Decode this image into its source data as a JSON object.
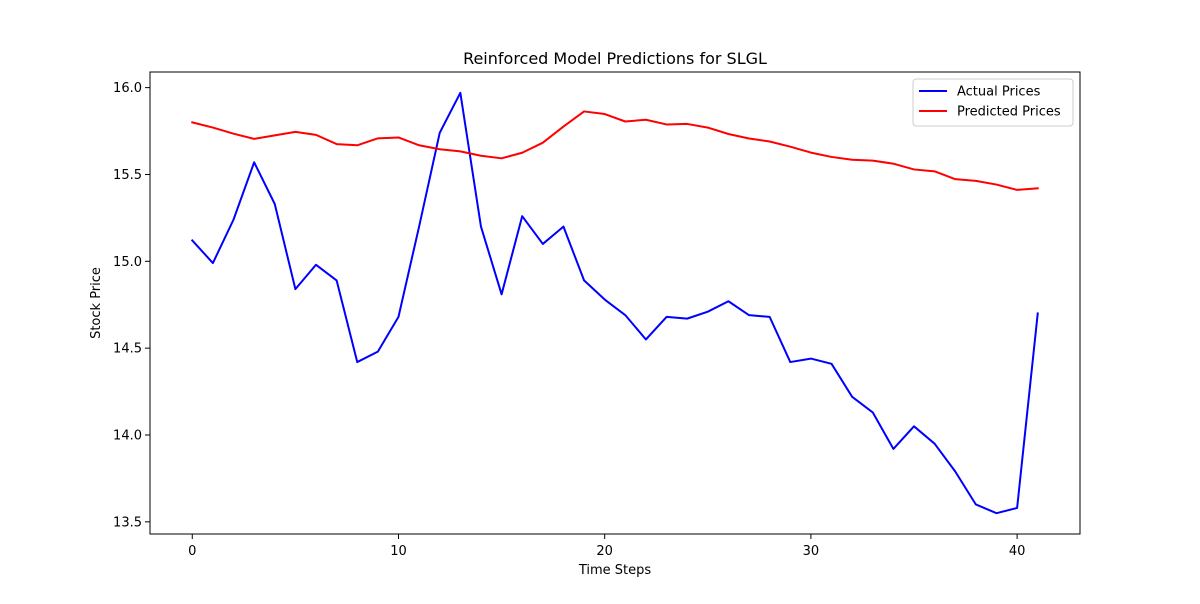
{
  "chart_data": {
    "type": "line",
    "title": "Reinforced Model Predictions for SLGL",
    "xlabel": "Time Steps",
    "ylabel": "Stock Price",
    "xlim": [
      -2.05,
      43.05
    ],
    "ylim": [
      13.43,
      16.09
    ],
    "xticks": [
      0,
      10,
      20,
      30,
      40
    ],
    "yticks": [
      13.5,
      14.0,
      14.5,
      15.0,
      15.5,
      16.0
    ],
    "ytick_labels": [
      "13.5",
      "14.0",
      "14.5",
      "15.0",
      "15.5",
      "16.0"
    ],
    "grid": false,
    "legend_position": "top-right",
    "x": [
      0,
      1,
      2,
      3,
      4,
      5,
      6,
      7,
      8,
      9,
      10,
      11,
      12,
      13,
      14,
      15,
      16,
      17,
      18,
      19,
      20,
      21,
      22,
      23,
      24,
      25,
      26,
      27,
      28,
      29,
      30,
      31,
      32,
      33,
      34,
      35,
      36,
      37,
      38,
      39,
      40,
      41
    ],
    "series": [
      {
        "name": "Actual Prices",
        "color": "#0000ff",
        "values": [
          15.12,
          14.99,
          15.24,
          15.57,
          15.33,
          14.84,
          14.98,
          14.89,
          14.42,
          14.48,
          14.68,
          15.2,
          15.74,
          15.97,
          15.2,
          14.81,
          15.26,
          15.1,
          15.2,
          14.89,
          14.78,
          14.69,
          14.55,
          14.68,
          14.67,
          14.71,
          14.77,
          14.69,
          14.68,
          14.42,
          14.44,
          14.41,
          14.22,
          14.13,
          13.92,
          14.05,
          13.95,
          13.79,
          13.6,
          13.55,
          13.58,
          14.7
        ]
      },
      {
        "name": "Predicted Prices",
        "color": "#ff0000",
        "values": [
          15.8,
          15.77,
          15.735,
          15.705,
          15.725,
          15.745,
          15.728,
          15.675,
          15.668,
          15.708,
          15.713,
          15.668,
          15.645,
          15.633,
          15.608,
          15.593,
          15.625,
          15.683,
          15.776,
          15.863,
          15.848,
          15.805,
          15.815,
          15.788,
          15.791,
          15.77,
          15.733,
          15.707,
          15.69,
          15.66,
          15.626,
          15.601,
          15.585,
          15.58,
          15.562,
          15.529,
          15.518,
          15.473,
          15.463,
          15.442,
          15.411,
          15.42
        ]
      }
    ]
  }
}
